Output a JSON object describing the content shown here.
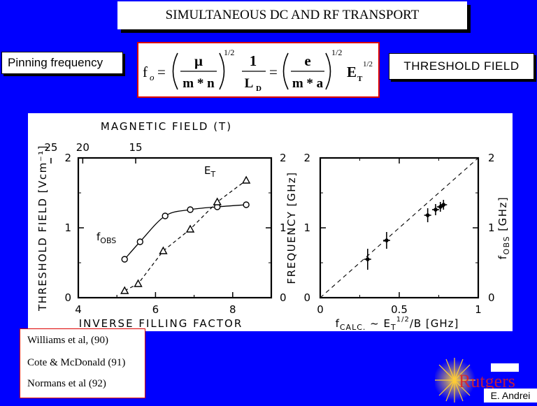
{
  "slide": {
    "title": "SIMULTANEOUS DC AND RF TRANSPORT",
    "left_label": "Pinning frequency",
    "right_label": "THRESHOLD FIELD",
    "formula": {
      "f": "f",
      "sub_o": "o",
      "eq": "=",
      "mu": "μ",
      "mn": "m * n",
      "half": "1/2",
      "one": "1",
      "L": "L",
      "sub_D": "D",
      "e": "e",
      "ma": "m * a",
      "E": "E",
      "sub_T": "T"
    },
    "references": [
      "Williams et al,  (90)",
      "Cote & McDonald (91)",
      "Normans et al (92)"
    ],
    "logo_text": "Rutgers",
    "credit": "E. Andrei"
  },
  "chart_data": [
    {
      "type": "line",
      "top_axis_label": "MAGNETIC FIELD  (T)",
      "top_ticks": [
        "15",
        "20",
        "25"
      ],
      "xlabel": "INVERSE  FILLING  FACTOR",
      "xticks": [
        "4",
        "6",
        "8"
      ],
      "xlim": [
        4,
        9
      ],
      "ylabel_left": "THRESHOLD  FIELD  [Vcm⁻¹]",
      "yticks_left": [
        "0",
        "1",
        "2"
      ],
      "ylim_left": [
        0,
        2
      ],
      "ylabel_right": "FREQUENCY  [GHz]",
      "yticks_right": [
        "0",
        "1",
        "2"
      ],
      "ylim_right": [
        0,
        2
      ],
      "series": [
        {
          "name": "fOBS",
          "marker": "circle",
          "line": "solid",
          "x": [
            5.2,
            5.6,
            6.25,
            6.9,
            7.6,
            8.35
          ],
          "y": [
            0.55,
            0.8,
            1.17,
            1.26,
            1.3,
            1.33
          ]
        },
        {
          "name": "ET",
          "marker": "triangle",
          "line": "dashed",
          "x": [
            5.2,
            5.55,
            6.2,
            6.9,
            7.6,
            8.35
          ],
          "y": [
            0.1,
            0.2,
            0.67,
            0.98,
            1.37,
            1.68
          ]
        }
      ]
    },
    {
      "type": "scatter",
      "xlabel": "fCALC. ~ ET1/2/B  [GHz]",
      "xticks": [
        "0",
        "0.5",
        "1"
      ],
      "xlim": [
        0,
        1
      ],
      "ylabel_left": "FREQUENCY  [GHz]",
      "yticks_left": [
        "0",
        "1",
        "2"
      ],
      "ylim_left": [
        0,
        2
      ],
      "ylabel_right": "fOBS  [GHz]",
      "yticks_right": [
        "0",
        "1",
        "2"
      ],
      "ylim_right": [
        0,
        2
      ],
      "points": [
        {
          "x": 0.3,
          "y": 0.55,
          "yerr": 0.15
        },
        {
          "x": 0.42,
          "y": 0.82,
          "yerr": 0.12
        },
        {
          "x": 0.68,
          "y": 1.18,
          "yerr": 0.1
        },
        {
          "x": 0.73,
          "y": 1.26,
          "yerr": 0.08
        },
        {
          "x": 0.76,
          "y": 1.3,
          "yerr": 0.07
        },
        {
          "x": 0.78,
          "y": 1.33,
          "yerr": 0.07
        }
      ],
      "reference_line": {
        "style": "dashed",
        "x": [
          0,
          1
        ],
        "y": [
          0,
          2
        ]
      }
    }
  ]
}
